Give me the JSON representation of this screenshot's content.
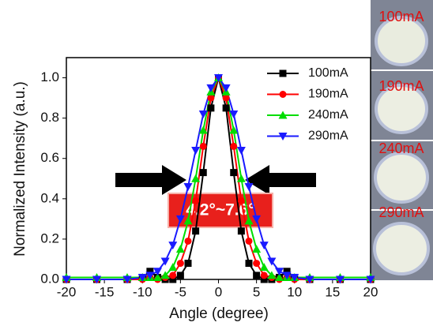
{
  "chart_data": {
    "type": "line",
    "x_label": "Angle (degree)",
    "y_label": "Normalized Intensity (a.u.)",
    "annotation": "4.2°~7.6°",
    "photo_labels": [
      "100mA",
      "190mA",
      "240mA",
      "290mA"
    ],
    "x": [
      -20,
      -16,
      -12,
      -10,
      -9,
      -8,
      -7,
      -6,
      -5,
      -4,
      -3,
      -2,
      -1,
      0,
      1,
      2,
      3,
      4,
      5,
      6,
      7,
      8,
      9,
      10,
      12,
      16,
      20
    ],
    "series": [
      {
        "name": "100mA",
        "color": "#000000",
        "marker": "square",
        "values": [
          0,
          0,
          0,
          0.01,
          0.04,
          0.01,
          0,
          0,
          0.02,
          0.08,
          0.24,
          0.53,
          0.85,
          1.0,
          0.85,
          0.53,
          0.24,
          0.08,
          0.02,
          0,
          0,
          0.01,
          0.04,
          0.01,
          0,
          0,
          0
        ]
      },
      {
        "name": "190mA",
        "color": "#ff0000",
        "marker": "circle",
        "values": [
          0,
          0,
          0,
          0,
          0.01,
          0,
          0.01,
          0.02,
          0.08,
          0.19,
          0.39,
          0.66,
          0.9,
          1.0,
          0.9,
          0.66,
          0.39,
          0.19,
          0.08,
          0.02,
          0.01,
          0,
          0.01,
          0,
          0,
          0,
          0
        ]
      },
      {
        "name": "240mA",
        "color": "#00dd00",
        "marker": "triangle-up",
        "values": [
          0.01,
          0.01,
          0.01,
          0.01,
          0.01,
          0.01,
          0.02,
          0.06,
          0.15,
          0.29,
          0.5,
          0.74,
          0.93,
          1.0,
          0.93,
          0.74,
          0.5,
          0.29,
          0.15,
          0.06,
          0.02,
          0.01,
          0.01,
          0.01,
          0.01,
          0.01,
          0.01
        ]
      },
      {
        "name": "290mA",
        "color": "#1a1aff",
        "marker": "triangle-down",
        "values": [
          0,
          0,
          0,
          0.01,
          0.02,
          0.04,
          0.09,
          0.17,
          0.3,
          0.46,
          0.64,
          0.82,
          0.95,
          1.0,
          0.95,
          0.82,
          0.64,
          0.46,
          0.3,
          0.17,
          0.09,
          0.04,
          0.02,
          0.01,
          0,
          0,
          0
        ]
      }
    ],
    "xlim": [
      -20,
      20
    ],
    "ylim": [
      0,
      1.1
    ],
    "xticks": [
      -20,
      -15,
      -10,
      -5,
      0,
      5,
      10,
      15,
      20
    ],
    "yticks": [
      {
        "value": 0,
        "label": "0.0"
      },
      0.2,
      0.4,
      0.6,
      0.8,
      {
        "value": 1,
        "label": "1.0"
      }
    ],
    "legend": "upper right",
    "grid": false
  }
}
